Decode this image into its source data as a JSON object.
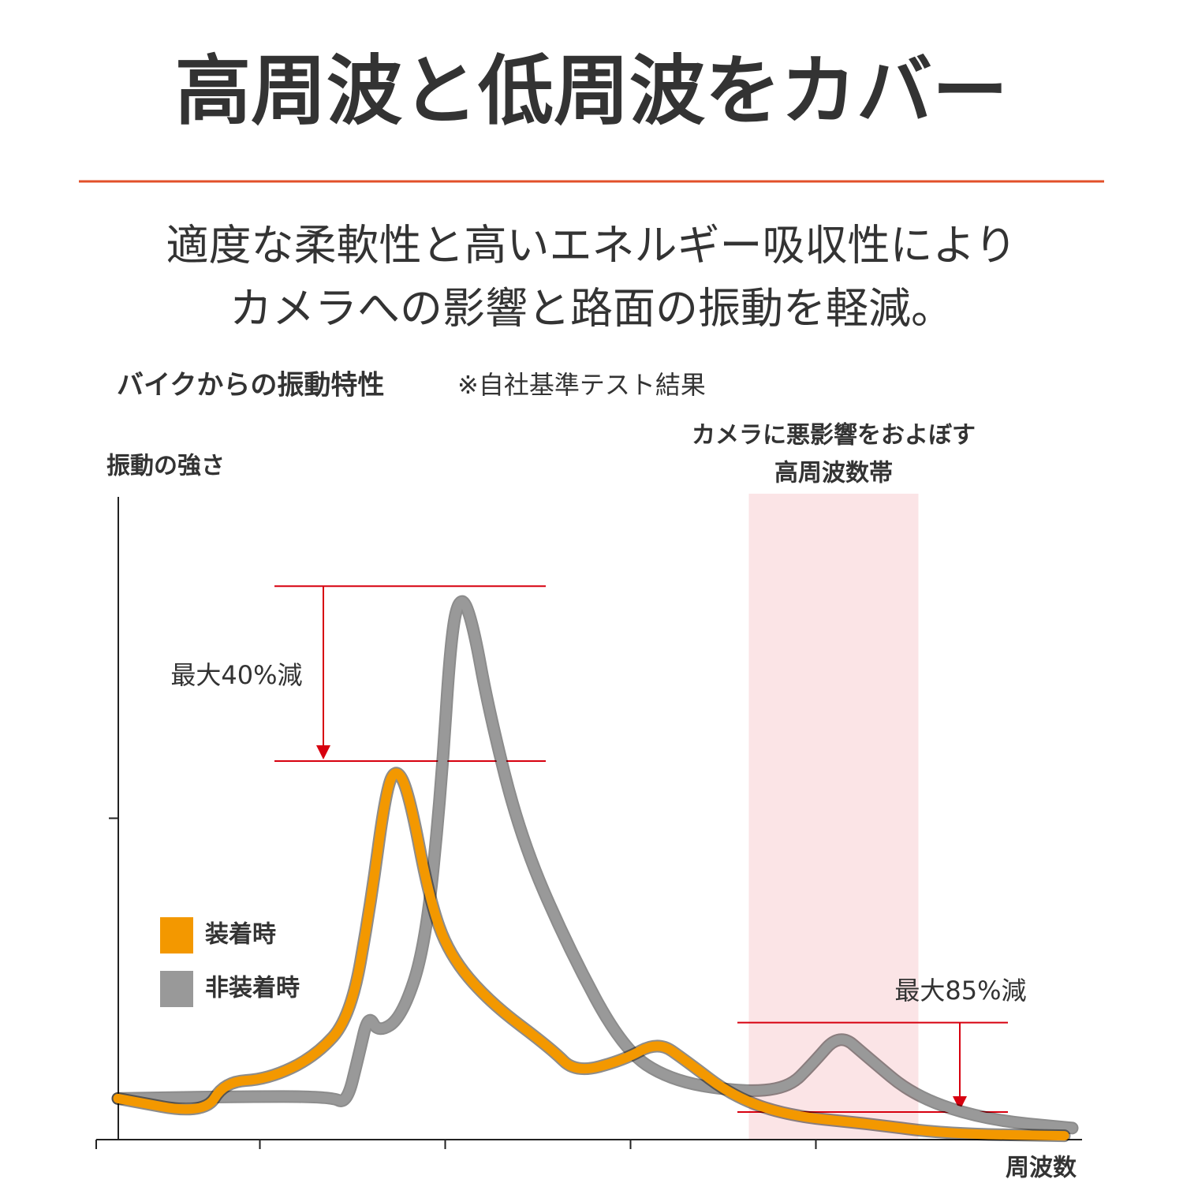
{
  "header": {
    "title": "高周波と低周波をカバー",
    "subtitle": [
      "適度な柔軟性と高いエネルギー吸収性により",
      "カメラへの影響と路面の振動を軽減。"
    ]
  },
  "chart_data": {
    "type": "line",
    "title": "バイクからの振動特性",
    "note": "※自社基準テスト結果",
    "ylabel": "振動の強さ",
    "xlabel": "周波数",
    "xlim": [
      0,
      100
    ],
    "ylim": [
      0,
      100
    ],
    "xticks": [
      0,
      16.6,
      35.4,
      54.2,
      73
    ],
    "yticks": [
      50
    ],
    "series": [
      {
        "name": "装着時",
        "color": "#f39800",
        "x": [
          2.2,
          11.0,
          13.0,
          17.4,
          22.2,
          25.8,
          27.8,
          29.4,
          30.5,
          31.8,
          33.8,
          35.8,
          39.8,
          46.2,
          48.6,
          53.4,
          57.0,
          59.8,
          64.6,
          70.2,
          78.2,
          86.2,
          98.2
        ],
        "values": [
          6.4,
          3.9,
          9.0,
          9.4,
          12.9,
          19.0,
          36.2,
          54.6,
          58.0,
          53.4,
          37.4,
          28.8,
          21.5,
          14.1,
          10.4,
          12.3,
          15.3,
          12.3,
          6.7,
          3.7,
          2.5,
          0.9,
          0.6
        ]
      },
      {
        "name": "非装着時",
        "color": "#999999",
        "x": [
          2.2,
          14.2,
          23.8,
          25.4,
          26.6,
          27.6,
          28.6,
          31.0,
          33.4,
          35.0,
          36.0,
          37.0,
          38.2,
          39.8,
          43.0,
          47.8,
          53.4,
          58.2,
          65.4,
          70.2,
          72.6,
          75.4,
          78.2,
          83.0,
          90.2,
          99.0
        ],
        "values": [
          6.4,
          6.7,
          6.7,
          5.5,
          12.9,
          19.6,
          16.6,
          19.0,
          30.1,
          54.6,
          79.1,
          85.0,
          80.4,
          66.9,
          47.2,
          30.1,
          14.1,
          9.2,
          7.4,
          8.0,
          11.7,
          16.6,
          12.9,
          6.7,
          3.1,
          1.8
        ]
      }
    ],
    "highlight_band": {
      "label": [
        "カメラに悪影響をおよぼす",
        "高周波数帯"
      ],
      "xlim": [
        66.2,
        83.4
      ],
      "color": "#fbe4e6"
    },
    "annotations": [
      {
        "label": "最大40%減",
        "from": 86.1,
        "to": 58.9,
        "color": "#d7000f"
      },
      {
        "label": "最大85%減",
        "from": 18.2,
        "to": 4.3,
        "color": "#d7000f"
      }
    ]
  }
}
